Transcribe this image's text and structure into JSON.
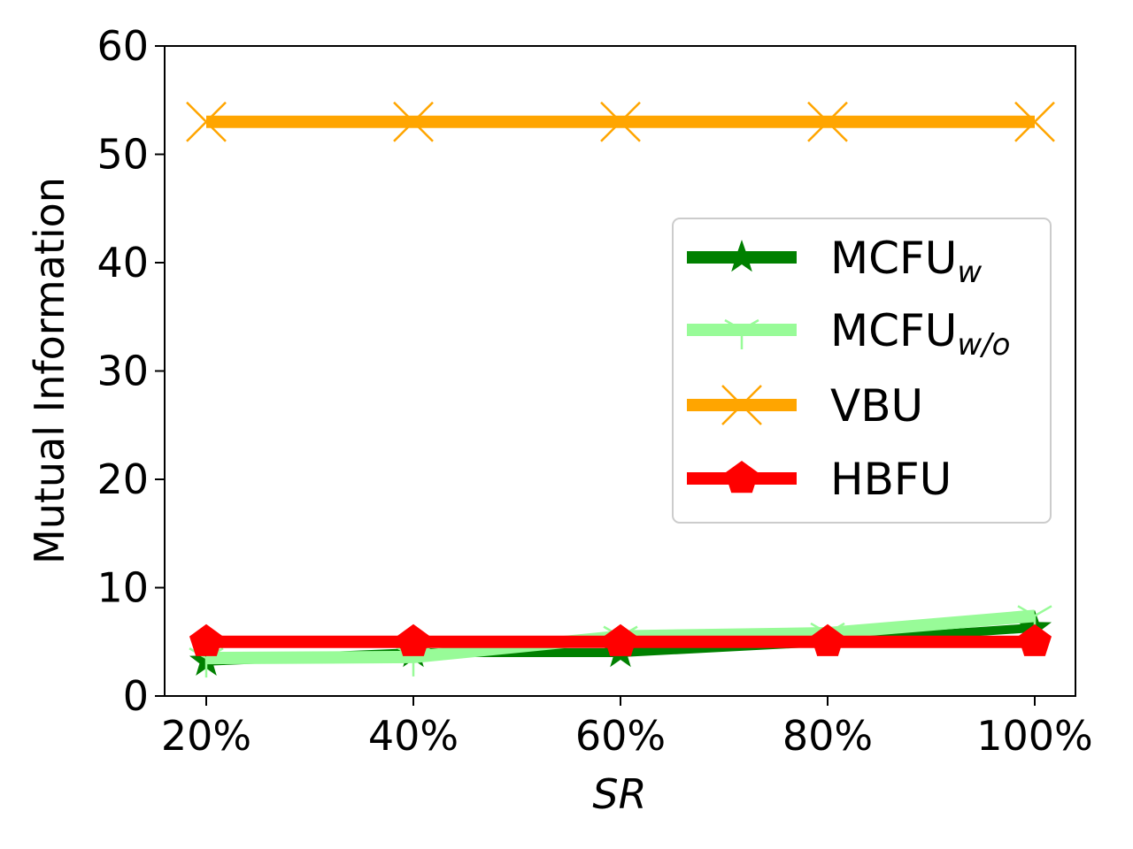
{
  "chart_data": {
    "type": "line",
    "categories": [
      "20%",
      "40%",
      "60%",
      "80%",
      "100%"
    ],
    "xlabel": "SR",
    "ylabel": "Mutual Information",
    "ylim": [
      0,
      60
    ],
    "yticks": [
      "0",
      "10",
      "20",
      "30",
      "40",
      "50",
      "60"
    ],
    "grid": false,
    "legend_position": "center-right",
    "series": [
      {
        "name": "MCFU",
        "subscript": "w",
        "color": "#008000",
        "marker": "star",
        "values": [
          3.2,
          4.0,
          4.0,
          5.0,
          6.3
        ]
      },
      {
        "name": "MCFU",
        "subscript": "w/o",
        "color": "#98fb98",
        "marker": "tri_down",
        "values": [
          3.5,
          3.6,
          5.5,
          5.8,
          7.4
        ]
      },
      {
        "name": "VBU",
        "subscript": "",
        "color": "#ffa500",
        "marker": "x",
        "values": [
          53.0,
          53.0,
          53.0,
          53.0,
          53.0
        ]
      },
      {
        "name": "HBFU",
        "subscript": "",
        "color": "#ff0000",
        "marker": "pentagon",
        "values": [
          5.0,
          5.0,
          5.0,
          5.0,
          5.0
        ]
      }
    ]
  }
}
